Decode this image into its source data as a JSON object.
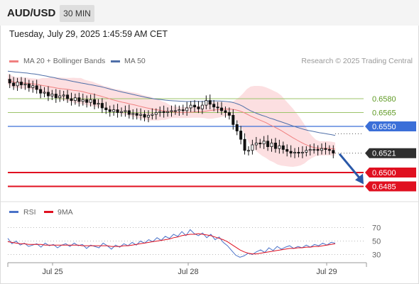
{
  "header": {
    "symbol": "AUD/USD",
    "timeframe": "30 MIN",
    "datetime": "Tuesday, July 29, 2025 1:45:59 AM CET"
  },
  "colors": {
    "bollinger_band": "#fbd9dc",
    "ma20": "#f08080",
    "ma50": "#4f6fa8",
    "resistance_lines": "#9cc46a",
    "pivot_line": "#3b6fd8",
    "support_lines": "#e01020",
    "price_tag": "#2f2f2f",
    "forecast_arrow": "#2a58a8",
    "candle": "#111111",
    "rsi": "#4a72c8",
    "rsi_ma": "#e01020"
  },
  "legend": {
    "ma20_label": "MA 20 + Bollinger Bands",
    "ma50_label": "MA 50",
    "credit": "Research © 2025 Trading Central",
    "rsi_label": "RSI",
    "rsi_ma_label": "9MA"
  },
  "chart_data": [
    {
      "type": "candlestick",
      "title": "AUD/USD 30 MIN",
      "x_axis_labels": [
        "Jul 25",
        "Jul 28",
        "Jul 29"
      ],
      "y_range": [
        0.647,
        0.661
      ],
      "current_price": 0.6521,
      "levels": [
        {
          "value": 0.658,
          "label": "0.6580",
          "kind": "resistance"
        },
        {
          "value": 0.6565,
          "label": "0.6565",
          "kind": "resistance"
        },
        {
          "value": 0.655,
          "label": "0.6550",
          "kind": "pivot"
        },
        {
          "value": 0.65,
          "label": "0.6500",
          "kind": "support"
        },
        {
          "value": 0.6485,
          "label": "0.6485",
          "kind": "support"
        }
      ],
      "price_path": [
        0.6601,
        0.6597,
        0.6594,
        0.6598,
        0.6595,
        0.6596,
        0.6592,
        0.6594,
        0.659,
        0.6586,
        0.6587,
        0.6583,
        0.6585,
        0.6581,
        0.6583,
        0.6584,
        0.658,
        0.6578,
        0.6581,
        0.6577,
        0.6579,
        0.6576,
        0.6579,
        0.6574,
        0.6575,
        0.657,
        0.6568,
        0.6566,
        0.6568,
        0.6565,
        0.6566,
        0.6567,
        0.6563,
        0.6564,
        0.6562,
        0.6563,
        0.656,
        0.6562,
        0.6563,
        0.6565,
        0.6566,
        0.6565,
        0.6566,
        0.6567,
        0.6567,
        0.6568,
        0.6567,
        0.657,
        0.6573,
        0.6571,
        0.6569,
        0.6573,
        0.6578,
        0.6574,
        0.6571,
        0.657,
        0.6567,
        0.6565,
        0.6562,
        0.6552,
        0.6545,
        0.6536,
        0.6524,
        0.6524,
        0.653,
        0.6532,
        0.6531,
        0.6534,
        0.6528,
        0.6532,
        0.6526,
        0.6529,
        0.6525,
        0.6523,
        0.6521,
        0.6522,
        0.6521,
        0.6522,
        0.6524,
        0.6525,
        0.6525,
        0.6524,
        0.6526,
        0.6525,
        0.6524,
        0.6521
      ],
      "forecast": {
        "from": 0.6521,
        "to": 0.6485,
        "direction": "down"
      }
    },
    {
      "type": "line",
      "title": "RSI",
      "y_ticks": [
        70,
        50,
        30
      ],
      "series": [
        {
          "name": "RSI",
          "values": [
            54,
            46,
            50,
            44,
            47,
            42,
            44,
            46,
            41,
            47,
            43,
            45,
            40,
            44,
            46,
            42,
            47,
            43,
            45,
            39,
            44,
            42,
            40,
            47,
            43,
            38,
            44,
            41,
            46,
            43,
            48,
            44,
            50,
            47,
            52,
            49,
            55,
            51,
            57,
            54,
            60,
            57,
            64,
            58,
            67,
            61,
            58,
            62,
            55,
            60,
            52,
            56,
            48,
            43,
            36,
            29,
            26,
            28,
            32,
            30,
            34,
            37,
            33,
            40,
            36,
            42,
            38,
            41,
            43,
            39,
            42,
            40,
            44,
            41,
            45,
            43,
            47,
            44,
            48,
            47
          ]
        },
        {
          "name": "9MA",
          "values": [
            49,
            48,
            47,
            46,
            46,
            45,
            45,
            45,
            45,
            44,
            44,
            44,
            44,
            44,
            44,
            44,
            44,
            44,
            43,
            43,
            43,
            43,
            43,
            43,
            43,
            42,
            42,
            42,
            43,
            43,
            44,
            45,
            46,
            47,
            48,
            49,
            50,
            51,
            52,
            53,
            55,
            56,
            58,
            59,
            60,
            60,
            61,
            60,
            59,
            58,
            56,
            54,
            52,
            49,
            45,
            41,
            37,
            34,
            32,
            31,
            31,
            32,
            33,
            34,
            35,
            36,
            37,
            38,
            39,
            39,
            40,
            40,
            41,
            41,
            42,
            42,
            43,
            44,
            45,
            46
          ]
        }
      ]
    }
  ]
}
